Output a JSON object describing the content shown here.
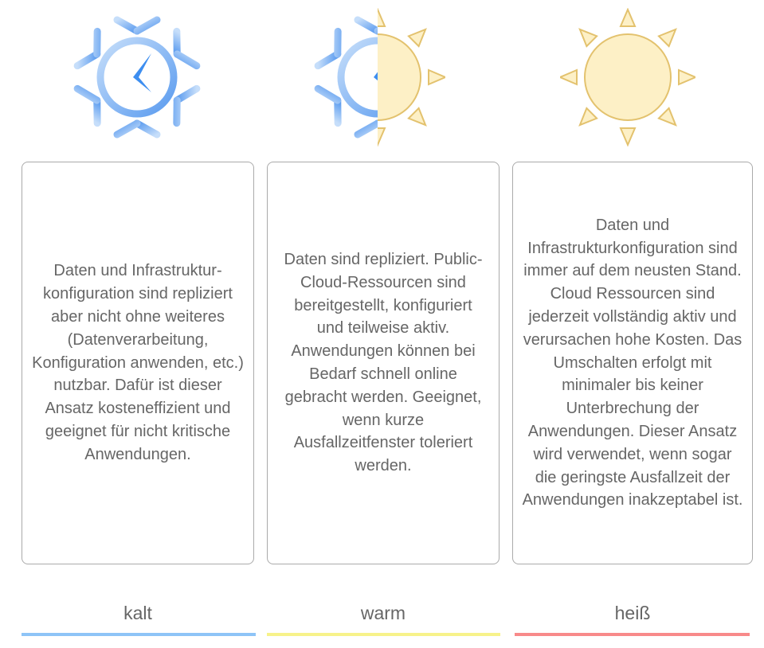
{
  "columns": [
    {
      "label": "kalt",
      "text": "Daten und Infrastruktur-konfiguration sind repliziert aber nicht ohne weiteres (Datenverarbeitung, Konfiguration anwenden, etc.) nutzbar. Dafür ist dieser Ansatz kosteneffizient und geeignet für nicht kritische Anwendungen.",
      "color": "#8ec4f7",
      "icon": "snowflake-clock-icon"
    },
    {
      "label": "warm",
      "text": "Daten sind repliziert. Public-Cloud-Ressourcen sind bereitgestellt, konfiguriert und teilweise aktiv. Anwendungen können bei Bedarf schnell online gebracht werden. Geeignet, wenn kurze Ausfallzeitfenster toleriert werden.",
      "color": "#f7f28a",
      "icon": "half-snowflake-half-sun-icon"
    },
    {
      "label": "heiß",
      "text": "Daten und Infrastrukturkonfiguration sind immer auf dem neusten Stand. Cloud Ressourcen sind jederzeit vollständig aktiv und verursachen hohe Kosten. Das Umschalten erfolgt mit minimaler bis keiner Unterbrechung der Anwendungen. Dieser Ansatz wird verwendet, wenn sogar die geringste Ausfallzeit der Anwendungen inakzeptabel ist.",
      "color": "#f88a8a",
      "icon": "sun-icon"
    }
  ]
}
